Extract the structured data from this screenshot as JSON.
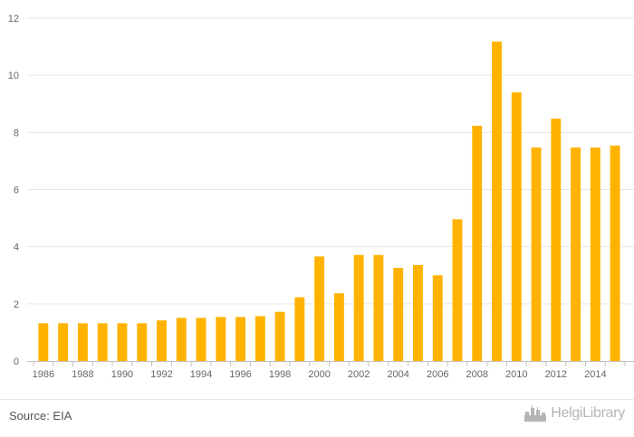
{
  "chart_data": {
    "type": "bar",
    "title": "",
    "xlabel": "",
    "ylabel": "",
    "categories": [
      "1986",
      "1987",
      "1988",
      "1989",
      "1990",
      "1991",
      "1992",
      "1993",
      "1994",
      "1995",
      "1996",
      "1997",
      "1998",
      "1999",
      "2000",
      "2001",
      "2002",
      "2003",
      "2004",
      "2005",
      "2006",
      "2007",
      "2008",
      "2009",
      "2010",
      "2011",
      "2012",
      "2013",
      "2014",
      "2015"
    ],
    "x_tick_labels": [
      "1986",
      "1988",
      "1990",
      "1992",
      "1994",
      "1996",
      "1998",
      "2000",
      "2002",
      "2004",
      "2006",
      "2008",
      "2010",
      "2012",
      "2014"
    ],
    "values": [
      1.32,
      1.32,
      1.32,
      1.32,
      1.32,
      1.32,
      1.42,
      1.51,
      1.51,
      1.54,
      1.54,
      1.57,
      1.72,
      2.23,
      3.66,
      2.37,
      3.71,
      3.71,
      3.26,
      3.36,
      3.0,
      4.96,
      8.23,
      11.18,
      9.4,
      7.47,
      8.48,
      7.47,
      7.47,
      7.54
    ],
    "ylim": [
      0,
      12
    ],
    "y_ticks": [
      0,
      2,
      4,
      6,
      8,
      10,
      12
    ],
    "grid": true,
    "bar_color": "#FFB300",
    "grid_color": "#e6e6e6",
    "axis_color": "#c0c0c0"
  },
  "footer": {
    "source": "Source: EIA",
    "logo_text": "HelgiLibrary",
    "logo_icon": "castle-icon"
  }
}
